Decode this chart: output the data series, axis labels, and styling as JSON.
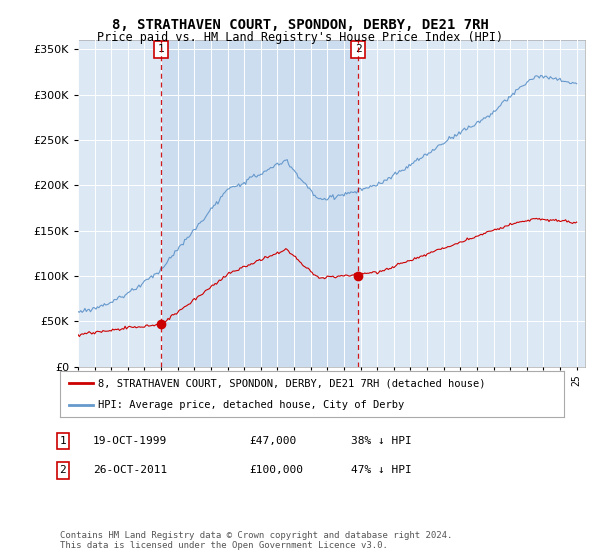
{
  "title": "8, STRATHAVEN COURT, SPONDON, DERBY, DE21 7RH",
  "subtitle": "Price paid vs. HM Land Registry's House Price Index (HPI)",
  "property_label": "8, STRATHAVEN COURT, SPONDON, DERBY, DE21 7RH (detached house)",
  "hpi_label": "HPI: Average price, detached house, City of Derby",
  "footnote": "Contains HM Land Registry data © Crown copyright and database right 2024.\nThis data is licensed under the Open Government Licence v3.0.",
  "transaction1": {
    "label": "1",
    "date": "19-OCT-1999",
    "price": "£47,000",
    "pct": "38% ↓ HPI",
    "x_year": 2000.0
  },
  "transaction2": {
    "label": "2",
    "date": "26-OCT-2011",
    "price": "£100,000",
    "pct": "47% ↓ HPI",
    "x_year": 2011.85
  },
  "t1_price": 47000,
  "t2_price": 100000,
  "ylim": [
    0,
    360000
  ],
  "xlim_start": 1995,
  "xlim_end": 2025.5,
  "plot_bg": "#dde8f5",
  "shaded_bg": "#ccddf0",
  "grid_color": "#ffffff",
  "property_line_color": "#cc0000",
  "hpi_line_color": "#6699cc",
  "dashed_line_color": "#cc0000",
  "marker_color": "#cc0000",
  "box_color": "#cc0000"
}
